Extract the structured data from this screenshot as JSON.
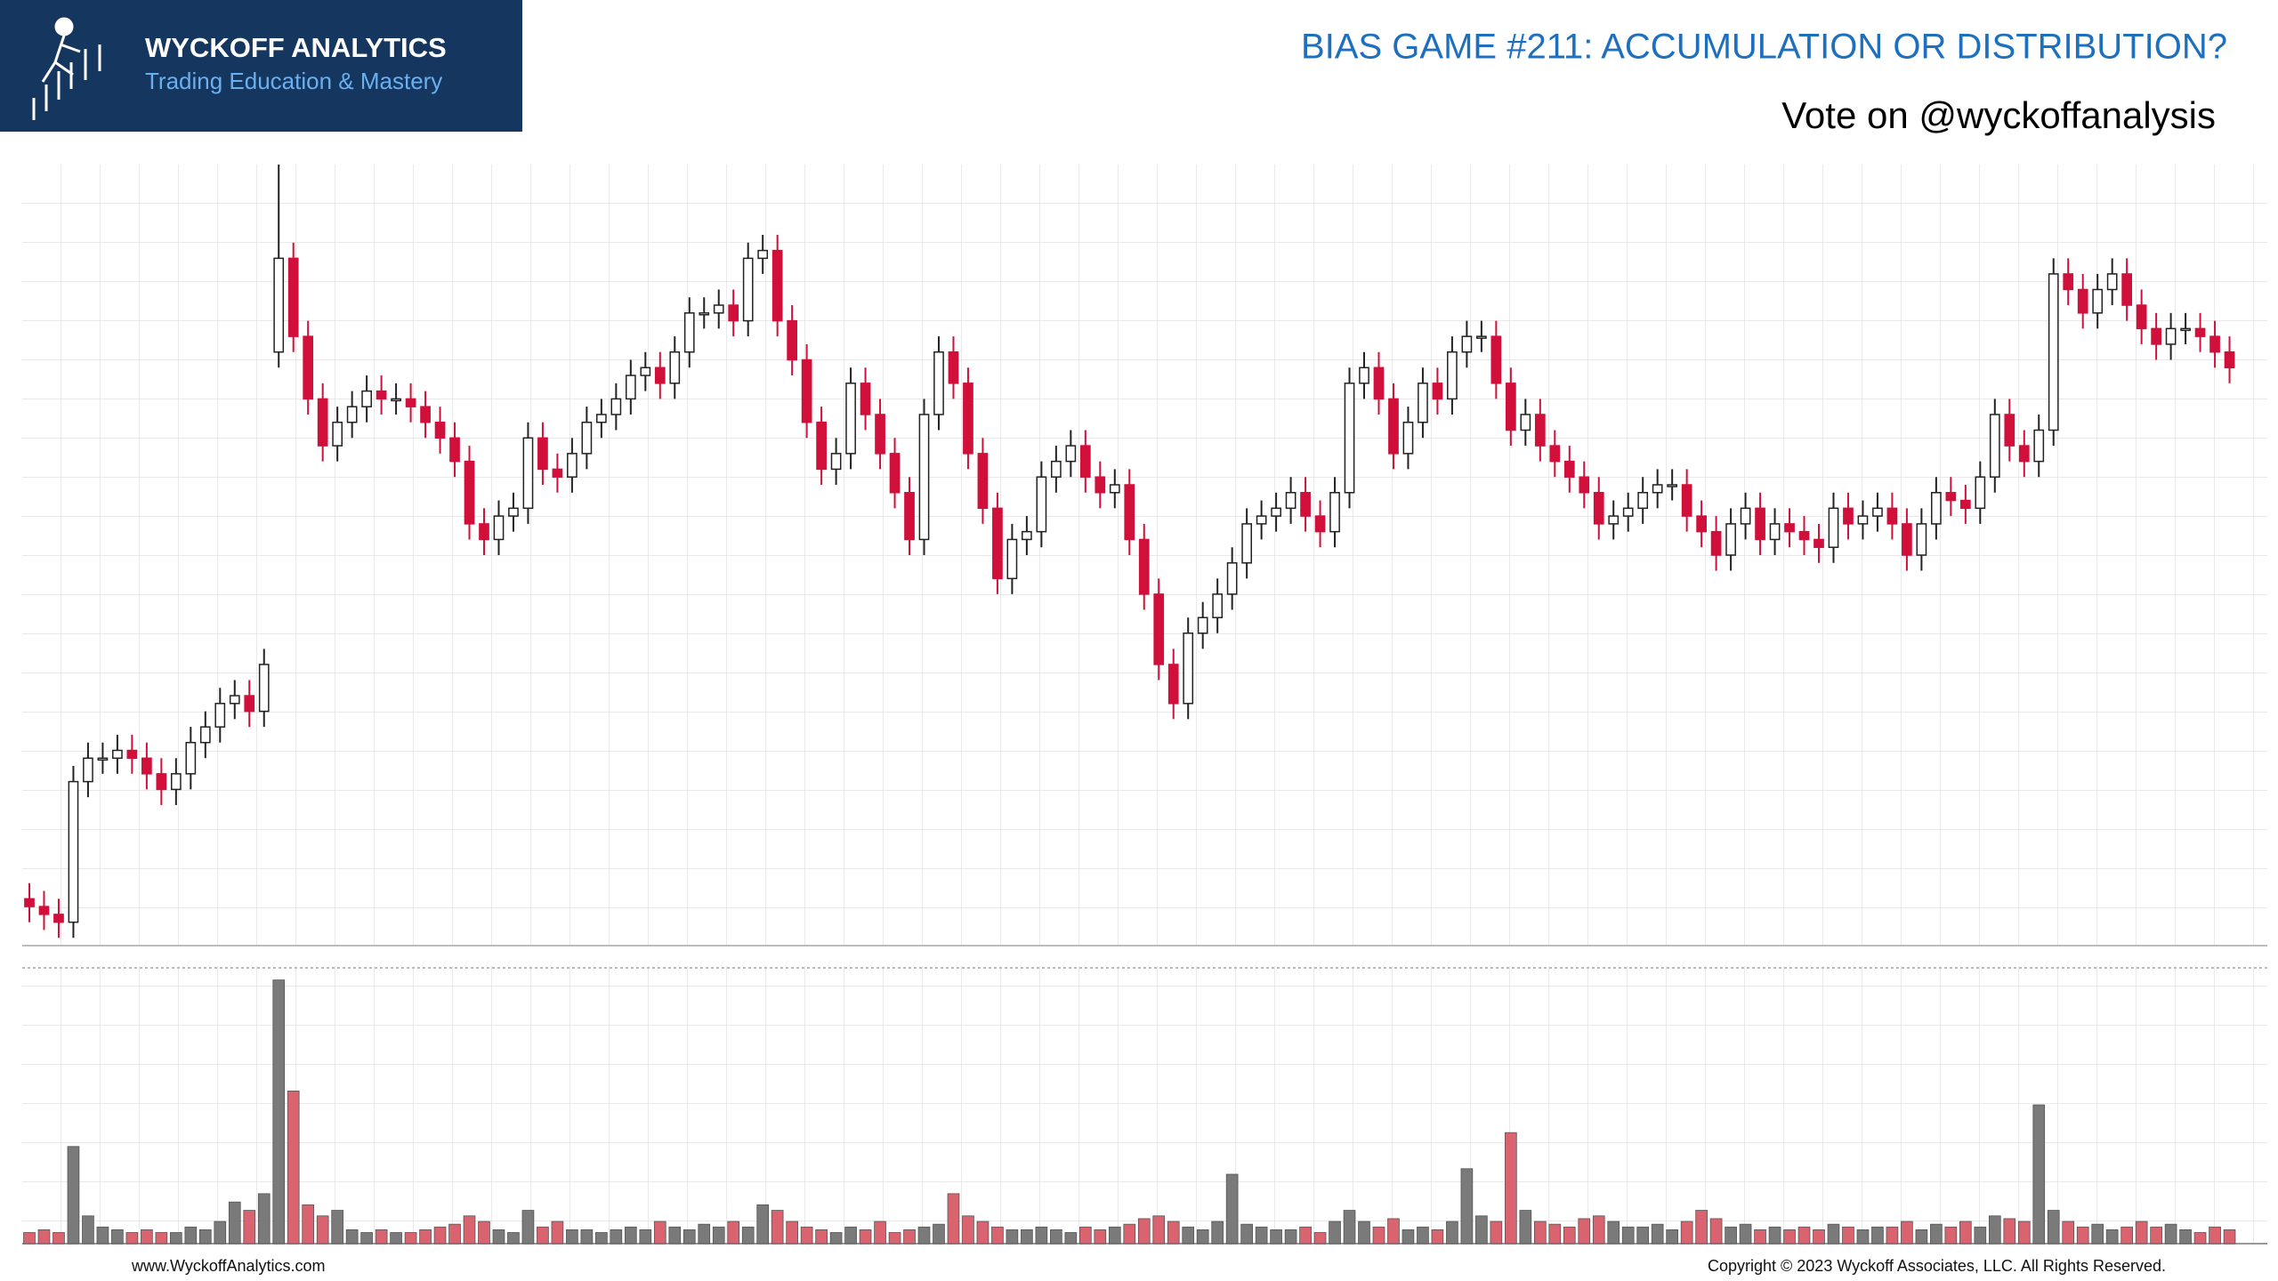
{
  "header": {
    "logo_title": "WYCKOFF ANALYTICS",
    "logo_subtitle": "Trading Education & Mastery",
    "title": "BIAS GAME #211: ACCUMULATION OR DISTRIBUTION?",
    "subtitle": "Vote on @wyckoffanalysis"
  },
  "footer": {
    "website": "www.WyckoffAnalytics.com",
    "copyright": "Copyright © 2023 Wyckoff Associates, LLC. All Rights Reserved."
  },
  "chart_data": [
    {
      "type": "candlestick",
      "ylim": [
        0,
        100
      ],
      "up_color": "#ffffff",
      "down_color": "#d0103a",
      "edge_color": "#222222",
      "open": [
        6,
        5,
        4,
        3,
        21,
        24,
        24,
        25,
        24,
        22,
        20,
        22,
        26,
        28,
        31,
        32,
        30,
        76,
        88,
        78,
        70,
        64,
        67,
        69,
        71,
        70,
        70,
        69,
        67,
        65,
        62,
        54,
        52,
        55,
        56,
        65,
        61,
        60,
        63,
        67,
        68,
        70,
        73,
        74,
        72,
        76,
        81,
        81,
        82,
        80,
        88,
        89,
        80,
        75,
        67,
        61,
        63,
        72,
        68,
        63,
        58,
        52,
        68,
        76,
        72,
        63,
        56,
        47,
        52,
        53,
        60,
        62,
        64,
        60,
        58,
        59,
        52,
        45,
        36,
        31,
        40,
        42,
        45,
        49,
        54,
        55,
        56,
        58,
        55,
        53,
        58,
        72,
        74,
        70,
        63,
        67,
        72,
        70,
        76,
        78,
        78,
        72,
        66,
        68,
        64,
        62,
        60,
        58,
        54,
        55,
        56,
        58,
        59,
        59,
        55,
        53,
        50,
        54,
        56,
        52,
        54,
        53,
        52,
        51,
        56,
        54,
        55,
        56,
        54,
        50,
        54,
        58,
        57,
        56,
        60,
        68,
        64,
        62,
        66,
        86,
        84,
        81,
        84,
        86,
        82,
        79,
        77,
        79,
        79,
        78,
        76
      ],
      "high": [
        8,
        7,
        6,
        23,
        26,
        26,
        27,
        27,
        26,
        24,
        24,
        28,
        30,
        33,
        34,
        34,
        38,
        100,
        90,
        80,
        72,
        69,
        71,
        73,
        73,
        72,
        72,
        71,
        69,
        67,
        64,
        56,
        57,
        58,
        67,
        67,
        63,
        65,
        69,
        70,
        72,
        75,
        76,
        76,
        78,
        83,
        83,
        84,
        84,
        90,
        91,
        91,
        82,
        77,
        69,
        65,
        74,
        74,
        70,
        65,
        60,
        70,
        78,
        78,
        74,
        65,
        58,
        54,
        55,
        62,
        64,
        66,
        66,
        62,
        61,
        61,
        54,
        47,
        38,
        42,
        44,
        47,
        51,
        56,
        57,
        58,
        60,
        60,
        57,
        60,
        74,
        76,
        76,
        72,
        69,
        74,
        74,
        78,
        80,
        80,
        80,
        74,
        70,
        70,
        66,
        64,
        62,
        60,
        57,
        58,
        60,
        61,
        61,
        61,
        57,
        55,
        56,
        58,
        58,
        56,
        56,
        55,
        54,
        58,
        58,
        57,
        58,
        58,
        56,
        56,
        60,
        60,
        59,
        62,
        70,
        70,
        66,
        68,
        88,
        88,
        86,
        86,
        88,
        88,
        84,
        81,
        81,
        81,
        81,
        80,
        78
      ],
      "low": [
        3,
        2,
        1,
        1,
        19,
        22,
        22,
        22,
        20,
        18,
        18,
        20,
        24,
        26,
        29,
        28,
        28,
        74,
        76,
        68,
        62,
        62,
        65,
        67,
        68,
        68,
        67,
        65,
        63,
        60,
        52,
        50,
        50,
        53,
        54,
        59,
        58,
        58,
        61,
        65,
        66,
        68,
        71,
        70,
        70,
        74,
        79,
        79,
        78,
        78,
        86,
        78,
        73,
        65,
        59,
        59,
        61,
        66,
        61,
        56,
        50,
        50,
        66,
        70,
        61,
        54,
        45,
        45,
        50,
        51,
        58,
        60,
        58,
        56,
        56,
        50,
        43,
        34,
        29,
        29,
        38,
        40,
        43,
        47,
        52,
        53,
        54,
        53,
        51,
        51,
        56,
        70,
        68,
        61,
        61,
        65,
        68,
        68,
        74,
        76,
        70,
        64,
        64,
        62,
        60,
        58,
        56,
        52,
        52,
        53,
        54,
        56,
        57,
        53,
        51,
        48,
        48,
        52,
        50,
        50,
        51,
        50,
        49,
        49,
        52,
        52,
        53,
        52,
        48,
        48,
        52,
        55,
        54,
        54,
        58,
        62,
        60,
        60,
        64,
        82,
        79,
        79,
        82,
        80,
        77,
        75,
        75,
        77,
        76,
        74,
        72
      ],
      "close": [
        5,
        4,
        3,
        21,
        24,
        24,
        25,
        24,
        22,
        20,
        22,
        26,
        28,
        31,
        32,
        30,
        36,
        88,
        78,
        70,
        64,
        67,
        69,
        71,
        70,
        70,
        69,
        67,
        65,
        62,
        54,
        52,
        55,
        56,
        65,
        61,
        60,
        63,
        67,
        68,
        70,
        73,
        74,
        72,
        76,
        81,
        81,
        82,
        80,
        88,
        89,
        80,
        75,
        67,
        61,
        63,
        72,
        68,
        63,
        58,
        52,
        68,
        76,
        72,
        63,
        56,
        47,
        52,
        53,
        60,
        62,
        64,
        60,
        58,
        59,
        52,
        45,
        36,
        31,
        40,
        42,
        45,
        49,
        54,
        55,
        56,
        58,
        55,
        53,
        58,
        72,
        74,
        70,
        63,
        67,
        72,
        70,
        76,
        78,
        78,
        72,
        66,
        68,
        64,
        62,
        60,
        58,
        54,
        55,
        56,
        58,
        59,
        59,
        55,
        53,
        50,
        54,
        56,
        52,
        54,
        53,
        52,
        51,
        56,
        54,
        55,
        56,
        54,
        50,
        54,
        58,
        57,
        56,
        60,
        68,
        64,
        62,
        66,
        86,
        84,
        81,
        84,
        86,
        82,
        79,
        77,
        79,
        79,
        78,
        76,
        74
      ]
    },
    {
      "type": "volume",
      "ylim": [
        0,
        100
      ],
      "up_color": "#7a7a7a",
      "down_color": "#d9646f",
      "values": [
        4,
        5,
        4,
        35,
        10,
        6,
        5,
        4,
        5,
        4,
        4,
        6,
        5,
        8,
        15,
        12,
        18,
        95,
        55,
        14,
        10,
        12,
        5,
        4,
        5,
        4,
        4,
        5,
        6,
        7,
        10,
        8,
        5,
        4,
        12,
        6,
        8,
        5,
        5,
        4,
        5,
        6,
        5,
        8,
        6,
        5,
        7,
        6,
        8,
        6,
        14,
        12,
        8,
        6,
        5,
        4,
        6,
        5,
        8,
        4,
        5,
        6,
        7,
        18,
        10,
        8,
        6,
        5,
        5,
        6,
        5,
        4,
        6,
        5,
        6,
        7,
        9,
        10,
        8,
        6,
        5,
        8,
        25,
        7,
        6,
        5,
        5,
        6,
        4,
        8,
        12,
        8,
        6,
        9,
        5,
        6,
        5,
        8,
        27,
        10,
        8,
        40,
        12,
        8,
        7,
        6,
        9,
        10,
        8,
        6,
        6,
        7,
        5,
        8,
        12,
        9,
        6,
        7,
        5,
        6,
        5,
        6,
        5,
        7,
        6,
        5,
        6,
        6,
        8,
        5,
        7,
        6,
        8,
        6,
        10,
        9,
        8,
        50,
        12,
        8,
        6,
        7,
        5,
        6,
        8,
        6,
        7,
        5,
        4,
        6,
        5
      ]
    }
  ]
}
